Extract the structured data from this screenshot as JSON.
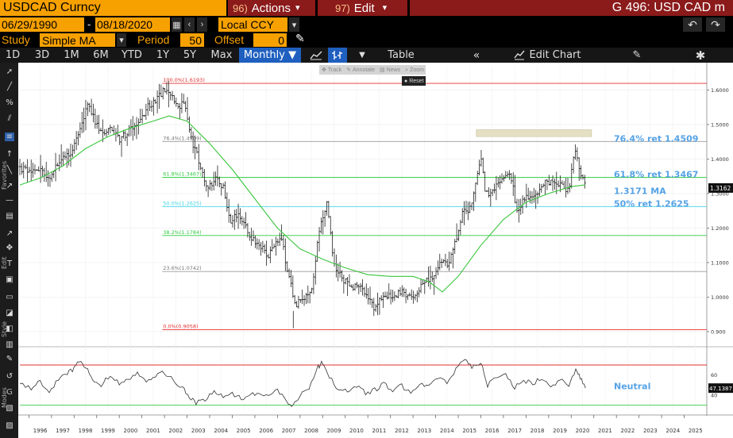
{
  "header": {
    "ticker": "USDCAD Curncy",
    "actions_num": "96)",
    "actions_label": "Actions",
    "actions_arrow": "▾",
    "edit_num": "97)",
    "edit_label": "Edit",
    "edit_arrow": "▾",
    "function_label": "G 496: USD CAD m"
  },
  "controls": {
    "start_date": "06/29/1990",
    "dash": "-",
    "end_date": "08/18/2020",
    "currency": "Local CCY",
    "study_label": "Study",
    "study_value": "Simple MA",
    "period_label": "Period",
    "period_value": "50",
    "offset_label": "Offset",
    "offset_value": "0"
  },
  "toolbar": {
    "periods": [
      "1D",
      "3D",
      "1M",
      "6M",
      "YTD",
      "1Y",
      "5Y",
      "Max"
    ],
    "frequency": "Monthly ▼",
    "table_label": "Table",
    "edit_chart_label": "Edit Chart"
  },
  "mini_toolbar": {
    "track": "Track",
    "annotate": "Annotate",
    "news": "News",
    "zoom": "Zoom",
    "reset": "Reset"
  },
  "side_labels": {
    "favorites": "Favorites",
    "edit": "Edit",
    "style": "Style",
    "modes": "Modes"
  },
  "colors": {
    "accent_orange": "#f7a100",
    "header_red": "#8b1a1a",
    "fib_red": "#e53030",
    "fib_green": "#2ecc40",
    "fib_cyan": "#3fd4e6",
    "ma_line": "#39c63c",
    "callout_blue": "#56a3e6",
    "price_bars": "#222222"
  },
  "chart_data": [
    {
      "type": "bar",
      "subtype": "ohlc",
      "frequency": "Monthly",
      "x_range": [
        1995.6,
        2026.0
      ],
      "ylim": [
        0.87,
        1.67
      ],
      "y_ticks": [
        0.9,
        1.0,
        1.1,
        1.2,
        1.3,
        1.4,
        1.5,
        1.6
      ],
      "y_tick_labels": [
        "0.900",
        "1.0000",
        "1.1000",
        "1.2000",
        "1.3000",
        "1.4000",
        "1.5000",
        "1.6000"
      ],
      "x_ticks": [
        "1996",
        "1997",
        "1998",
        "1999",
        "2000",
        "2001",
        "2002",
        "2003",
        "2004",
        "2005",
        "2006",
        "2007",
        "2008",
        "2009",
        "2010",
        "2011",
        "2012",
        "2013",
        "2014",
        "2015",
        "2016",
        "2017",
        "2018",
        "2019",
        "2020",
        "2021",
        "2022",
        "2023",
        "2024",
        "2025"
      ],
      "price_path": [
        [
          1995.6,
          1.372
        ],
        [
          1996.0,
          1.365
        ],
        [
          1996.5,
          1.368
        ],
        [
          1996.9,
          1.345
        ],
        [
          1997.3,
          1.386
        ],
        [
          1997.8,
          1.415
        ],
        [
          1998.2,
          1.465
        ],
        [
          1998.6,
          1.56
        ],
        [
          1998.8,
          1.525
        ],
        [
          1999.2,
          1.48
        ],
        [
          1999.6,
          1.485
        ],
        [
          2000.0,
          1.455
        ],
        [
          2000.5,
          1.485
        ],
        [
          2000.9,
          1.505
        ],
        [
          2001.3,
          1.555
        ],
        [
          2001.7,
          1.575
        ],
        [
          2002.0,
          1.6
        ],
        [
          2002.3,
          1.585
        ],
        [
          2002.6,
          1.555
        ],
        [
          2002.9,
          1.56
        ],
        [
          2003.2,
          1.455
        ],
        [
          2003.6,
          1.38
        ],
        [
          2003.9,
          1.315
        ],
        [
          2004.3,
          1.345
        ],
        [
          2004.6,
          1.32
        ],
        [
          2004.9,
          1.22
        ],
        [
          2005.3,
          1.245
        ],
        [
          2005.8,
          1.175
        ],
        [
          2006.2,
          1.15
        ],
        [
          2006.6,
          1.12
        ],
        [
          2006.9,
          1.16
        ],
        [
          2007.2,
          1.16
        ],
        [
          2007.5,
          1.055
        ],
        [
          2007.8,
          0.98
        ],
        [
          2008.2,
          0.995
        ],
        [
          2008.5,
          1.01
        ],
        [
          2008.8,
          1.18
        ],
        [
          2009.0,
          1.225
        ],
        [
          2009.2,
          1.28
        ],
        [
          2009.5,
          1.09
        ],
        [
          2009.9,
          1.05
        ],
        [
          2010.3,
          1.03
        ],
        [
          2010.7,
          1.025
        ],
        [
          2010.9,
          1.015
        ],
        [
          2011.3,
          0.965
        ],
        [
          2011.7,
          1.01
        ],
        [
          2012.0,
          1.0
        ],
        [
          2012.5,
          1.015
        ],
        [
          2012.9,
          0.995
        ],
        [
          2013.2,
          1.015
        ],
        [
          2013.5,
          1.04
        ],
        [
          2013.9,
          1.065
        ],
        [
          2014.2,
          1.105
        ],
        [
          2014.6,
          1.095
        ],
        [
          2014.9,
          1.165
        ],
        [
          2015.2,
          1.255
        ],
        [
          2015.5,
          1.255
        ],
        [
          2015.8,
          1.33
        ],
        [
          2016.0,
          1.41
        ],
        [
          2016.2,
          1.3
        ],
        [
          2016.5,
          1.305
        ],
        [
          2016.9,
          1.34
        ],
        [
          2017.3,
          1.365
        ],
        [
          2017.6,
          1.25
        ],
        [
          2017.9,
          1.28
        ],
        [
          2018.2,
          1.295
        ],
        [
          2018.6,
          1.305
        ],
        [
          2018.9,
          1.335
        ],
        [
          2019.2,
          1.335
        ],
        [
          2019.6,
          1.32
        ],
        [
          2019.9,
          1.31
        ],
        [
          2020.15,
          1.42
        ],
        [
          2020.3,
          1.395
        ],
        [
          2020.45,
          1.35
        ],
        [
          2020.63,
          1.317
        ]
      ],
      "ma_label": "1.3171 MA",
      "ma_path": [
        [
          1995.6,
          1.325
        ],
        [
          1996.5,
          1.345
        ],
        [
          1997.5,
          1.38
        ],
        [
          1998.5,
          1.43
        ],
        [
          1999.5,
          1.465
        ],
        [
          2000.5,
          1.49
        ],
        [
          2001.5,
          1.51
        ],
        [
          2002.2,
          1.525
        ],
        [
          2003.0,
          1.51
        ],
        [
          2004.0,
          1.445
        ],
        [
          2005.0,
          1.37
        ],
        [
          2006.0,
          1.285
        ],
        [
          2007.0,
          1.2
        ],
        [
          2008.0,
          1.14
        ],
        [
          2009.0,
          1.11
        ],
        [
          2010.0,
          1.085
        ],
        [
          2011.0,
          1.065
        ],
        [
          2012.0,
          1.06
        ],
        [
          2013.0,
          1.06
        ],
        [
          2013.7,
          1.045
        ],
        [
          2014.3,
          1.015
        ],
        [
          2015.0,
          1.06
        ],
        [
          2016.0,
          1.15
        ],
        [
          2017.0,
          1.225
        ],
        [
          2018.0,
          1.275
        ],
        [
          2019.0,
          1.3
        ],
        [
          2020.0,
          1.32
        ],
        [
          2020.6,
          1.325
        ]
      ],
      "resistance_zone": {
        "x": [
          2015.8,
          2020.9
        ],
        "y": [
          1.465,
          1.485
        ]
      },
      "fib_levels": [
        {
          "pct": "100.0%",
          "value": 1.6193,
          "label": "100.0%(1.6193)",
          "color": "#e53030"
        },
        {
          "pct": "76.4%",
          "value": 1.4509,
          "label": "76.4%(1.4509)",
          "color": "#999999"
        },
        {
          "pct": "61.8%",
          "value": 1.3467,
          "label": "61.8%(1.3467)",
          "color": "#2ecc40"
        },
        {
          "pct": "50.0%",
          "value": 1.2625,
          "label": "50.0%(1.2625)",
          "color": "#3fd4e6"
        },
        {
          "pct": "38.2%",
          "value": 1.1784,
          "label": "38.2%(1.1784)",
          "color": "#2ecc40"
        },
        {
          "pct": "23.6%",
          "value": 1.0742,
          "label": "23.6%(1.0742)",
          "color": "#999999"
        },
        {
          "pct": "0.0%",
          "value": 0.9058,
          "label": "0.0%(0.9058)",
          "color": "#e53030"
        }
      ],
      "callouts": [
        {
          "text": "76.4% ret 1.4509",
          "value": 1.4509
        },
        {
          "text": "61.8% ret 1.3467",
          "value": 1.3467
        },
        {
          "text": "1.3171 MA",
          "value": 1.3171
        },
        {
          "text": "50% ret 1.2625",
          "value": 1.2625
        }
      ],
      "last_price": 1.3162,
      "last_price_label": "1.3162"
    },
    {
      "type": "line",
      "indicator": "RSI",
      "ylim": [
        25,
        85
      ],
      "upper_band": 70,
      "lower_band": 30,
      "y_tick_labels": [
        {
          "value": 60,
          "label": "60"
        },
        {
          "value": 40,
          "label": "40"
        }
      ],
      "status_label": "Neutral",
      "last_value_label": "47.1387",
      "values": [
        [
          1995.6,
          50
        ],
        [
          1996.1,
          47
        ],
        [
          1996.5,
          53
        ],
        [
          1996.9,
          44
        ],
        [
          1997.3,
          55
        ],
        [
          1997.7,
          62
        ],
        [
          1998.0,
          67
        ],
        [
          1998.3,
          75
        ],
        [
          1998.6,
          64
        ],
        [
          1998.9,
          55
        ],
        [
          1999.2,
          50
        ],
        [
          1999.6,
          60
        ],
        [
          2000.0,
          52
        ],
        [
          2000.4,
          57
        ],
        [
          2000.8,
          62
        ],
        [
          2001.2,
          55
        ],
        [
          2001.6,
          60
        ],
        [
          2002.0,
          62
        ],
        [
          2002.4,
          55
        ],
        [
          2002.8,
          47
        ],
        [
          2003.1,
          38
        ],
        [
          2003.4,
          32
        ],
        [
          2003.8,
          36
        ],
        [
          2004.2,
          44
        ],
        [
          2004.6,
          38
        ],
        [
          2005.0,
          42
        ],
        [
          2005.4,
          37
        ],
        [
          2005.8,
          40
        ],
        [
          2006.2,
          43
        ],
        [
          2006.6,
          39
        ],
        [
          2007.0,
          45
        ],
        [
          2007.4,
          34
        ],
        [
          2007.7,
          30
        ],
        [
          2008.0,
          40
        ],
        [
          2008.4,
          48
        ],
        [
          2008.8,
          68
        ],
        [
          2009.0,
          73
        ],
        [
          2009.3,
          58
        ],
        [
          2009.7,
          46
        ],
        [
          2010.1,
          44
        ],
        [
          2010.5,
          49
        ],
        [
          2010.9,
          42
        ],
        [
          2011.3,
          45
        ],
        [
          2011.7,
          51
        ],
        [
          2012.1,
          45
        ],
        [
          2012.5,
          49
        ],
        [
          2012.9,
          44
        ],
        [
          2013.3,
          52
        ],
        [
          2013.7,
          49
        ],
        [
          2014.1,
          57
        ],
        [
          2014.5,
          52
        ],
        [
          2014.9,
          66
        ],
        [
          2015.3,
          76
        ],
        [
          2015.6,
          68
        ],
        [
          2016.0,
          74
        ],
        [
          2016.3,
          50
        ],
        [
          2016.7,
          57
        ],
        [
          2017.1,
          60
        ],
        [
          2017.5,
          48
        ],
        [
          2017.9,
          54
        ],
        [
          2018.3,
          52
        ],
        [
          2018.7,
          58
        ],
        [
          2019.1,
          49
        ],
        [
          2019.5,
          56
        ],
        [
          2019.9,
          50
        ],
        [
          2020.2,
          64
        ],
        [
          2020.4,
          57
        ],
        [
          2020.63,
          47
        ]
      ]
    }
  ]
}
